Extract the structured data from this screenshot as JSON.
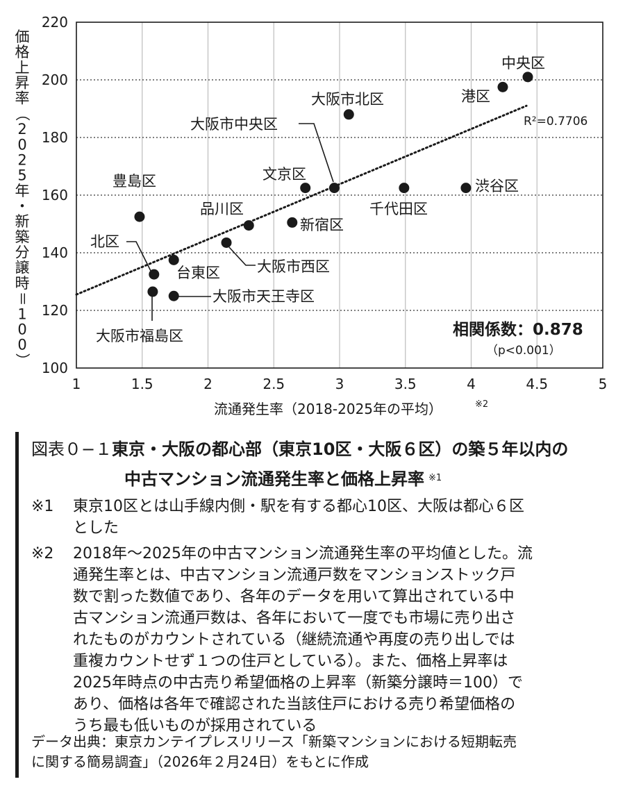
{
  "chart_data": {
    "type": "scatter",
    "xlabel": "流通発生率（2018-2025年の平均）",
    "xlabel_note": "※2",
    "ylabel": "価格上昇率（2025年・新築分譲時＝100）",
    "xlim": [
      1,
      5
    ],
    "ylim": [
      100,
      220
    ],
    "x_ticks": [
      "1",
      "1.5",
      "2",
      "2.5",
      "3",
      "3.5",
      "4",
      "4.5",
      "5"
    ],
    "y_ticks": [
      "100",
      "120",
      "140",
      "160",
      "180",
      "200",
      "220"
    ],
    "grid": "horizontal dotted, vertical solid",
    "trendline": {
      "x": [
        1,
        4.42
      ],
      "y": [
        125.5,
        191
      ],
      "style": "dotted",
      "r2_label": "R²=0.7706"
    },
    "correlation_label": "相関係数：0.878",
    "p_label": "（p<0.001）",
    "points": [
      {
        "label": "中央区",
        "x": 4.43,
        "y": 201
      },
      {
        "label": "港区",
        "x": 4.24,
        "y": 197.5
      },
      {
        "label": "大阪市北区",
        "x": 3.07,
        "y": 188
      },
      {
        "label": "大阪市中央区",
        "x": 2.96,
        "y": 162.5
      },
      {
        "label": "文京区",
        "x": 2.74,
        "y": 162.5
      },
      {
        "label": "千代田区",
        "x": 3.49,
        "y": 162.5
      },
      {
        "label": "渋谷区",
        "x": 3.96,
        "y": 162.5
      },
      {
        "label": "豊島区",
        "x": 1.48,
        "y": 152.5
      },
      {
        "label": "品川区",
        "x": 2.31,
        "y": 149.5
      },
      {
        "label": "新宿区",
        "x": 2.64,
        "y": 150.5
      },
      {
        "label": "大阪市西区",
        "x": 2.14,
        "y": 143.5
      },
      {
        "label": "台東区",
        "x": 1.74,
        "y": 137.5
      },
      {
        "label": "北区",
        "x": 1.59,
        "y": 132.5
      },
      {
        "label": "大阪市福島区",
        "x": 1.58,
        "y": 126.5
      },
      {
        "label": "大阪市天王寺区",
        "x": 1.74,
        "y": 125
      }
    ]
  },
  "caption": {
    "label": "図表０−１",
    "title_line1": "東京・大阪の都心部（東京10区・大阪６区）の築５年以内の",
    "title_line2": "中古マンション流通発生率と価格上昇率",
    "title_note": "※1",
    "notes": [
      {
        "mark": "※1",
        "lines": [
          "東京10区とは山手線内側・駅を有する都心10区、大阪は都心６区",
          "とした"
        ]
      },
      {
        "mark": "※2",
        "lines": [
          "2018年〜2025年の中古マンション流通発生率の平均値とした。流",
          "通発生率とは、中古マンション流通戸数をマンションストック戸",
          "数で割った数値であり、各年のデータを用いて算出されている中",
          "古マンション流通戸数は、各年において一度でも市場に売り出さ",
          "れたものがカウントされている（継続流通や再度の売り出しでは",
          "重複カウントせず１つの住戸としている）。また、価格上昇率は",
          "2025年時点の中古売り希望価格の上昇率（新築分譲時＝100）で",
          "あり、価格は各年で確認された当該住戸における売り希望価格の",
          "うち最も低いものが採用されている"
        ]
      }
    ],
    "source_lines": [
      "データ出典：東京カンテイプレスリリース「新築マンションにおける短期転売",
      "に関する簡易調査」（2026年２月24日）をもとに作成"
    ]
  }
}
